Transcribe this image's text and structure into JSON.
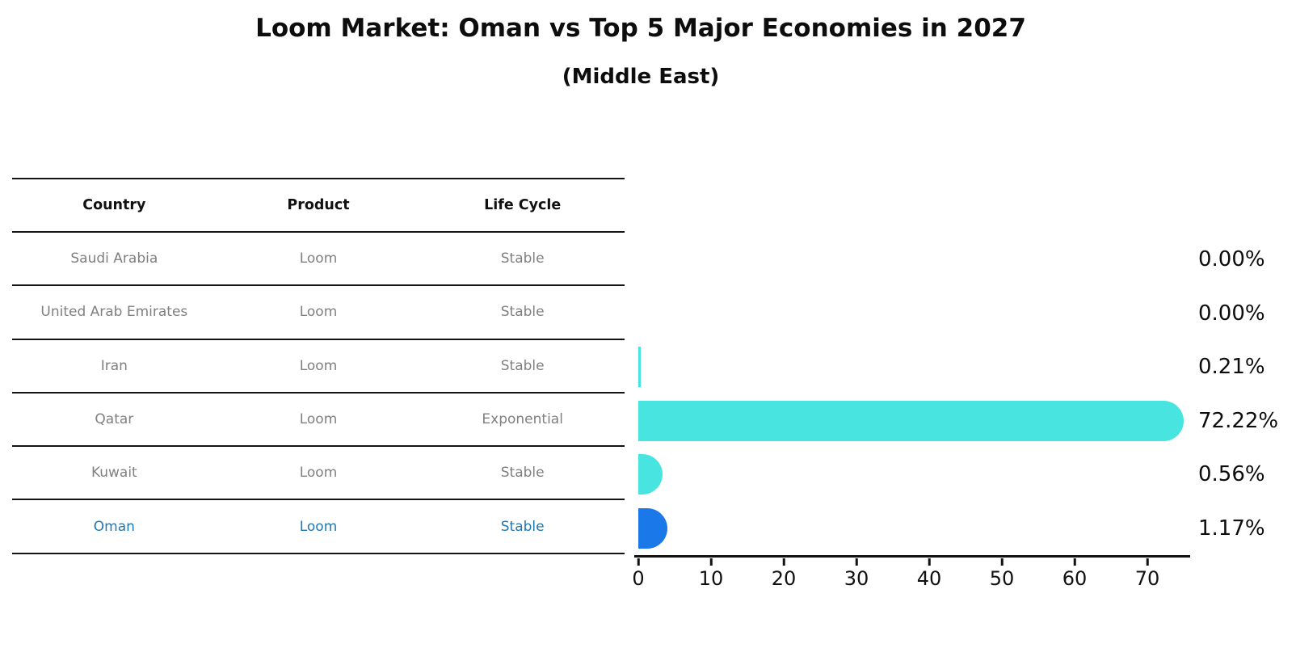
{
  "title": "Loom Market: Oman vs Top 5 Major Economies in 2027",
  "subtitle": "(Middle East)",
  "table": {
    "headers": [
      "Country",
      "Product",
      "Life Cycle"
    ],
    "rows": [
      {
        "country": "Saudi Arabia",
        "product": "Loom",
        "life_cycle": "Stable",
        "highlight": false
      },
      {
        "country": "United Arab Emirates",
        "product": "Loom",
        "life_cycle": "Stable",
        "highlight": false
      },
      {
        "country": "Iran",
        "product": "Loom",
        "life_cycle": "Stable",
        "highlight": false
      },
      {
        "country": "Qatar",
        "product": "Loom",
        "life_cycle": "Exponential",
        "highlight": false
      },
      {
        "country": "Kuwait",
        "product": "Loom",
        "life_cycle": "Stable",
        "highlight": false
      },
      {
        "country": "Oman",
        "product": "Loom",
        "life_cycle": "Stable",
        "highlight": true
      }
    ]
  },
  "chart_data": {
    "type": "bar",
    "orientation": "horizontal",
    "title": "Loom Market: Oman vs Top 5 Major Economies in 2027",
    "subtitle": "(Middle East)",
    "categories": [
      "Saudi Arabia",
      "United Arab Emirates",
      "Iran",
      "Qatar",
      "Kuwait",
      "Oman"
    ],
    "values": [
      0.0,
      0.0,
      0.21,
      72.22,
      0.56,
      1.17
    ],
    "value_labels": [
      "0.00%",
      "0.00%",
      "0.21%",
      "72.22%",
      "0.56%",
      "1.17%"
    ],
    "x_ticks": [
      0,
      10,
      20,
      30,
      40,
      50,
      60,
      70
    ],
    "xlim": [
      0,
      75.5
    ],
    "xlabel": "",
    "ylabel": "",
    "grid": false,
    "legend": false,
    "bar_colors": [
      "#47e4e0",
      "#47e4e0",
      "#47e4e0",
      "#47e4e0",
      "#47e4e0",
      "#1b78e8"
    ],
    "highlight_index": 5
  },
  "colors": {
    "bar_cyan": "#47e4e0",
    "bar_blue": "#1b78e8",
    "highlight_text": "#1f77b4",
    "cell_text": "#808080",
    "line_and_text": "#111111"
  }
}
